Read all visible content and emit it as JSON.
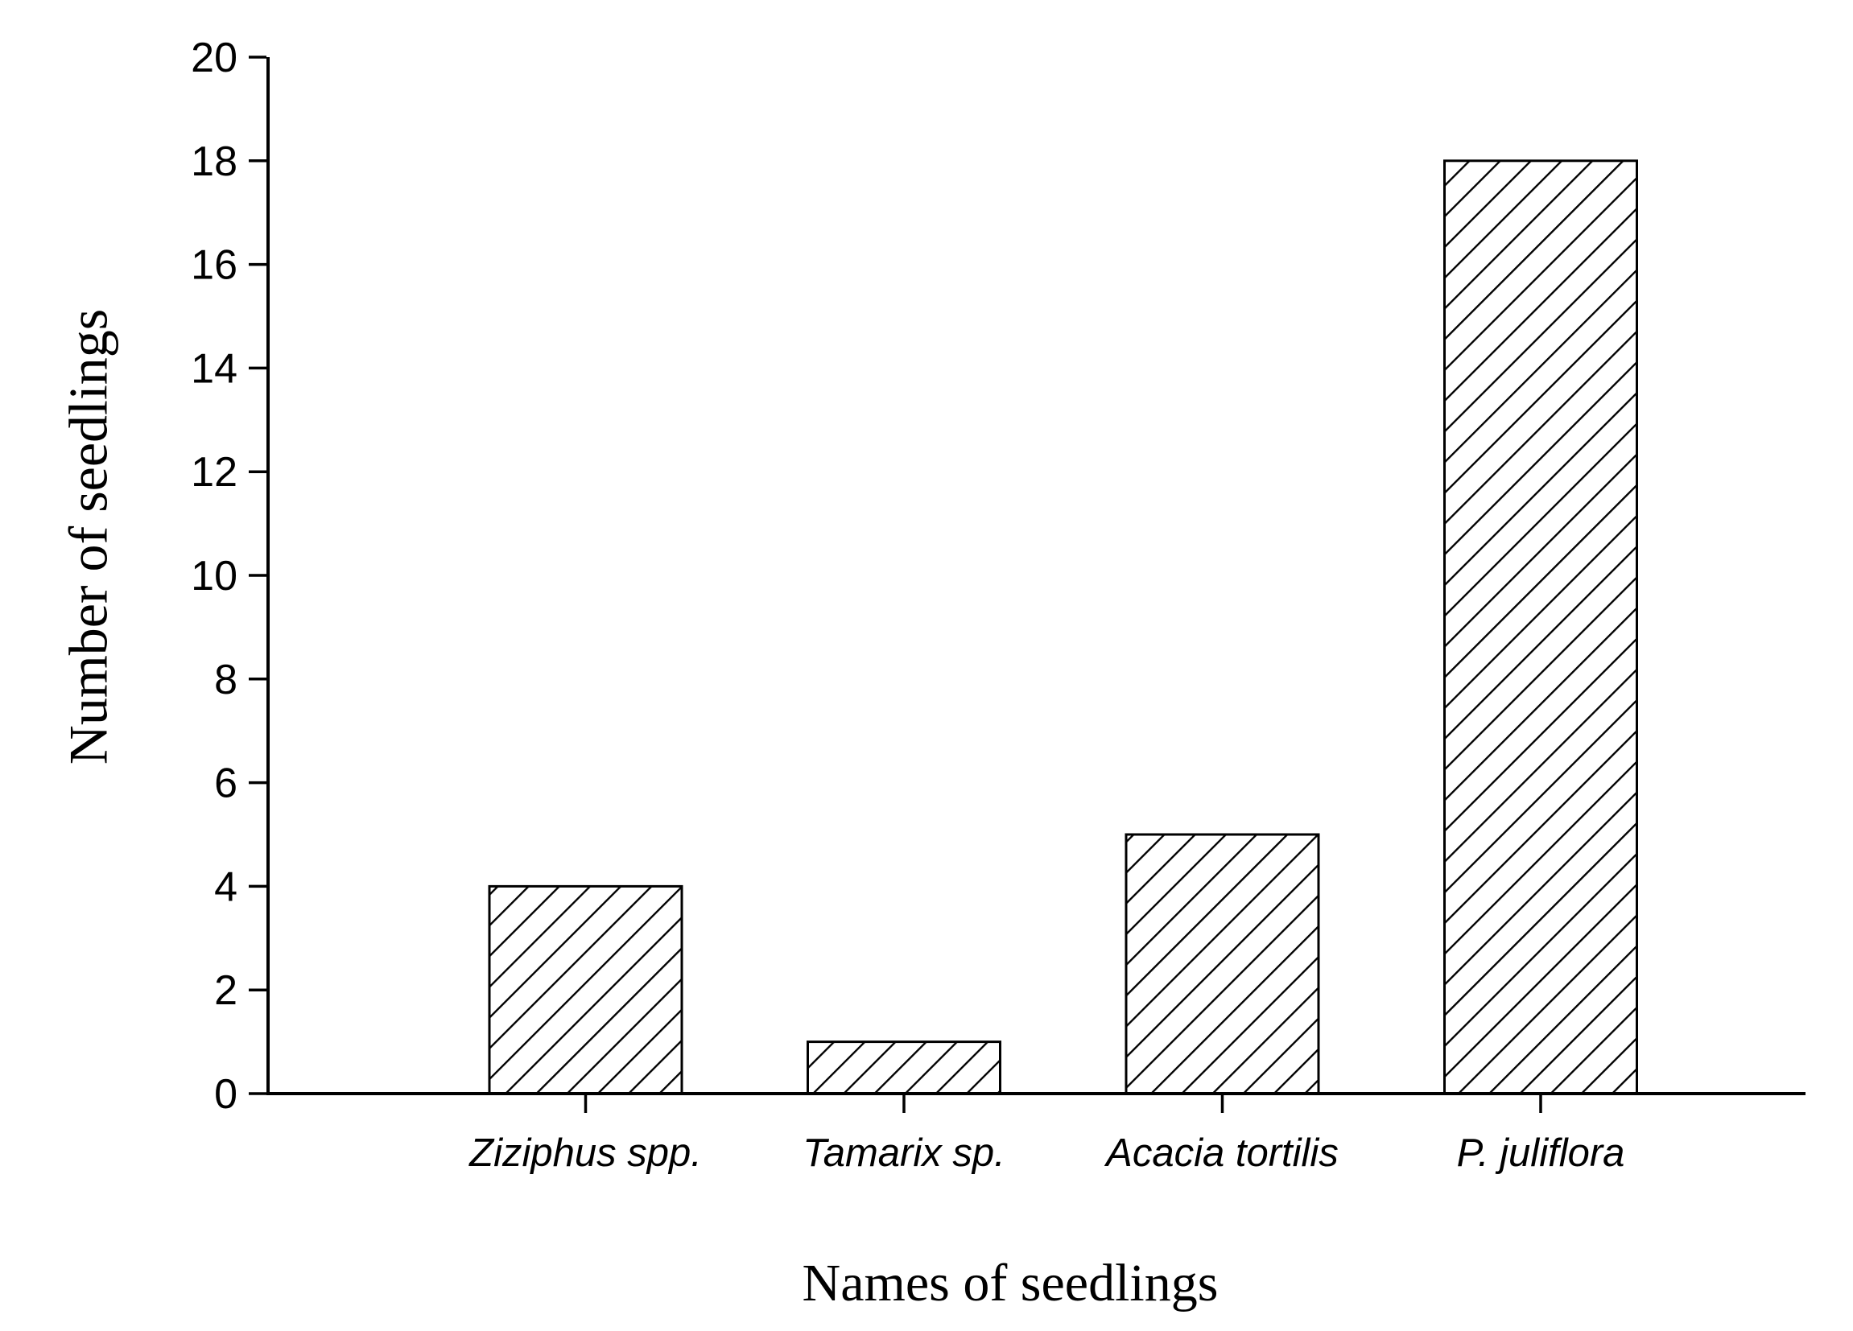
{
  "chart_data": {
    "type": "bar",
    "title": "",
    "categories": [
      "Ziziphus spp.",
      "Tamarix sp.",
      "Acacia tortilis",
      "P. juliflora"
    ],
    "values": [
      4,
      1,
      5,
      18
    ],
    "xlabel": "Names of seedlings",
    "ylabel": "Number of seedlings",
    "ylim": [
      0,
      20
    ],
    "ytick_interval": 2,
    "yticks": [
      0,
      2,
      4,
      6,
      8,
      10,
      12,
      14,
      16,
      18,
      20
    ],
    "grid": false,
    "legend_position": "none",
    "bar_style": "diagonal-hatch",
    "colors": {
      "axis": "#000000",
      "bar_outline": "#000000",
      "hatch_line": "#000000",
      "background": "#ffffff"
    }
  }
}
